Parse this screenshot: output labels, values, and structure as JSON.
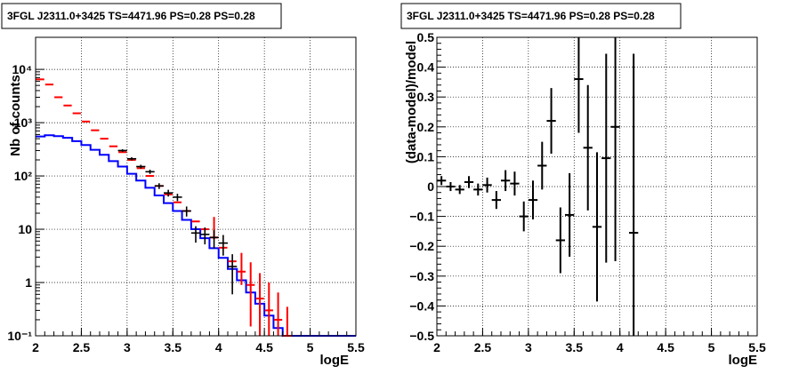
{
  "chart_data": [
    {
      "type": "histogram",
      "title": "3FGL J2311.0+3425 TS=4471.96 PS=0.28 PS=0.28",
      "xlabel": "logE",
      "ylabel": "Nb of counts",
      "xlim": [
        2,
        5.5
      ],
      "ylim": [
        0.1,
        40000
      ],
      "yscale": "log",
      "grid": true,
      "x_ticks": [
        "2",
        "2.5",
        "3",
        "3.5",
        "4",
        "4.5",
        "5",
        "5.5"
      ],
      "y_ticks": [
        {
          "value": 0.1,
          "label": "10⁻¹"
        },
        {
          "value": 1,
          "label": "1"
        },
        {
          "value": 10,
          "label": "10"
        },
        {
          "value": 100,
          "label": "10²"
        },
        {
          "value": 1000,
          "label": "10³"
        },
        {
          "value": 10000,
          "label": "10⁴"
        }
      ],
      "bin_edges": [
        2.0,
        2.1,
        2.2,
        2.3,
        2.4,
        2.5,
        2.6,
        2.7,
        2.8,
        2.9,
        3.0,
        3.1,
        3.2,
        3.3,
        3.4,
        3.5,
        3.6,
        3.7,
        3.8,
        3.9,
        4.0,
        4.1,
        4.2,
        4.3,
        4.4,
        4.5,
        4.6,
        4.7,
        4.8,
        4.9,
        5.0,
        5.1,
        5.2,
        5.3,
        5.4,
        5.5
      ],
      "series": [
        {
          "color": "#ff0000",
          "style": "markers-with-errors",
          "values": [
            6500,
            5200,
            3000,
            2100,
            1500,
            1050,
            720,
            500,
            360,
            280,
            200,
            140,
            100,
            65,
            45,
            32,
            22,
            14,
            10,
            7,
            4.5,
            2.5,
            1.6,
            0.9,
            0.5,
            0.3,
            0.2,
            0.1
          ],
          "err_low": [
            0,
            0,
            0,
            0,
            0,
            0,
            0,
            0,
            0,
            0,
            0,
            0,
            0,
            0,
            0,
            0,
            0,
            0,
            0,
            0.5,
            0,
            0,
            0.7,
            0.75,
            0.4,
            0.26,
            0.17,
            0.09
          ],
          "err_high": [
            0,
            0,
            0,
            0,
            0,
            0,
            0,
            0,
            0,
            0,
            0,
            0,
            0,
            0,
            0,
            0,
            0,
            0,
            0,
            10,
            0,
            0,
            2.0,
            1.5,
            1.0,
            0.7,
            0.45,
            0.25
          ]
        },
        {
          "color": "#0000ff",
          "style": "step",
          "values": [
            550,
            580,
            560,
            520,
            450,
            380,
            310,
            250,
            190,
            150,
            110,
            82,
            60,
            43,
            31,
            22,
            15,
            10,
            6.8,
            4.4,
            2.9,
            1.8,
            1.1,
            0.65,
            0.4,
            0.24,
            0.14,
            0.1,
            0.1,
            0.1,
            0.1,
            0.1,
            0.1,
            0.1,
            0.1
          ]
        },
        {
          "color": "#000000",
          "style": "data-with-errors",
          "x": [
            2.95,
            3.05,
            3.15,
            3.25,
            3.35,
            3.45,
            3.55,
            3.65,
            3.75,
            3.85,
            3.95,
            4.05,
            4.15
          ],
          "values": [
            300,
            210,
            150,
            120,
            65,
            48,
            40,
            22,
            8.5,
            8,
            7,
            5.5,
            2
          ],
          "err_low": [
            17,
            14,
            12,
            11,
            8,
            7,
            6.3,
            4.7,
            2.9,
            2.8,
            2.6,
            2.3,
            1.4
          ],
          "err_high": [
            17,
            14,
            12,
            11,
            8,
            7,
            6.3,
            4.7,
            2.9,
            2.8,
            2.6,
            2.3,
            1.4
          ]
        }
      ]
    },
    {
      "type": "scatter",
      "title": "3FGL J2311.0+3425 TS=4471.96 PS=0.28 PS=0.28",
      "xlabel": "logE",
      "ylabel": "(data-model)/model",
      "xlim": [
        2,
        5.5
      ],
      "ylim": [
        -0.5,
        0.5
      ],
      "grid": true,
      "x_ticks": [
        "2",
        "2.5",
        "3",
        "3.5",
        "4",
        "4.5",
        "5",
        "5.5"
      ],
      "y_ticks": [
        "−0.5",
        "−0.4",
        "−0.3",
        "−0.2",
        "−0.1",
        "0",
        "0.1",
        "0.2",
        "0.3",
        "0.4",
        "0.5"
      ],
      "points": [
        {
          "x": 2.05,
          "y": 0.02,
          "err": 0.015
        },
        {
          "x": 2.15,
          "y": 0.0,
          "err": 0.015
        },
        {
          "x": 2.25,
          "y": -0.01,
          "err": 0.015
        },
        {
          "x": 2.35,
          "y": 0.015,
          "err": 0.02
        },
        {
          "x": 2.45,
          "y": -0.01,
          "err": 0.02
        },
        {
          "x": 2.55,
          "y": 0.005,
          "err": 0.025
        },
        {
          "x": 2.65,
          "y": -0.045,
          "err": 0.03
        },
        {
          "x": 2.75,
          "y": 0.02,
          "err": 0.035
        },
        {
          "x": 2.85,
          "y": 0.01,
          "err": 0.04
        },
        {
          "x": 2.95,
          "y": -0.1,
          "err": 0.05
        },
        {
          "x": 3.05,
          "y": -0.045,
          "err": 0.065
        },
        {
          "x": 3.15,
          "y": 0.07,
          "err": 0.08
        },
        {
          "x": 3.25,
          "y": 0.22,
          "err": 0.11
        },
        {
          "x": 3.35,
          "y": -0.18,
          "err": 0.11
        },
        {
          "x": 3.45,
          "y": -0.095,
          "err": 0.14
        },
        {
          "x": 3.55,
          "y": 0.36,
          "err": 0.18
        },
        {
          "x": 3.65,
          "y": 0.13,
          "err": 0.21
        },
        {
          "x": 3.75,
          "y": -0.135,
          "err": 0.25
        },
        {
          "x": 3.85,
          "y": 0.095,
          "err": 0.35
        },
        {
          "x": 3.95,
          "y": 0.2,
          "err": 0.45
        },
        {
          "x": 4.15,
          "y": -0.155,
          "err": 0.6
        }
      ]
    }
  ]
}
